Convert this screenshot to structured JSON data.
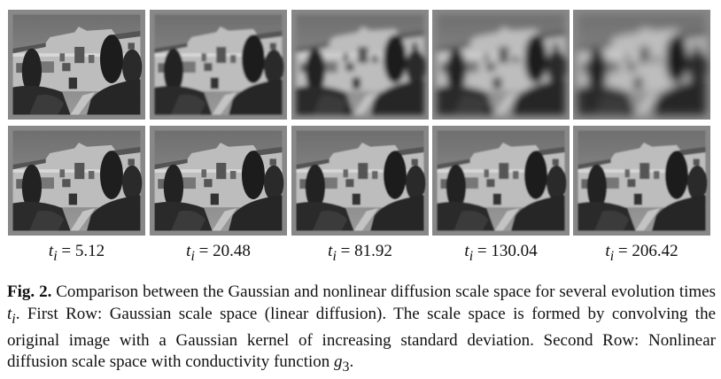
{
  "figure": {
    "rows": [
      {
        "description_label": "First Row",
        "method": "Gaussian scale space (linear diffusion)"
      },
      {
        "description_label": "Second Row",
        "method": "Nonlinear diffusion scale space with conductivity function g3"
      }
    ],
    "time_labels": [
      {
        "var": "t",
        "sub": "i",
        "value": "= 5.12"
      },
      {
        "var": "t",
        "sub": "i",
        "value": "= 20.48"
      },
      {
        "var": "t",
        "sub": "i",
        "value": "= 81.92"
      },
      {
        "var": "t",
        "sub": "i",
        "value": "= 130.04"
      },
      {
        "var": "t",
        "sub": "i",
        "value": "= 206.42"
      }
    ]
  },
  "caption": {
    "label": "Fig. 2.",
    "part1": " Comparison between the Gaussian and nonlinear diffusion scale space for several evolution times ",
    "ti_var": "t",
    "ti_sub": "i",
    "part2": ". First Row: Gaussian scale space (linear diffusion). The scale space is formed by convolving the original image with a Gaussian kernel of increasing standard deviation. Second Row: Nonlinear diffusion scale space with conductivity function ",
    "g_var": "g",
    "g_sub": "3",
    "part3": "."
  }
}
